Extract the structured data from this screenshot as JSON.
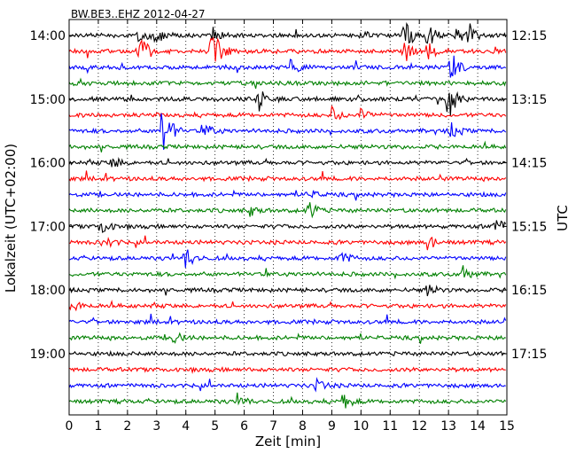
{
  "chart_data": {
    "type": "line",
    "title": "BW.BE3..EHZ 2012-04-27",
    "xlabel": "Zeit  [min]",
    "ylabel": "Lokalzeit (UTC+02:00)",
    "ylabel_right": "UTC",
    "xlim": [
      0,
      15
    ],
    "x_ticks": [
      "0",
      "1",
      "2",
      "3",
      "4",
      "5",
      "6",
      "7",
      "8",
      "9",
      "10",
      "11",
      "12",
      "13",
      "14",
      "15"
    ],
    "grid": "vertical dotted",
    "trace_count": 24,
    "trace_interval_min": 15,
    "color_cycle": [
      "#000000",
      "#ff0000",
      "#0000ff",
      "#008000"
    ],
    "left_ticks": [
      {
        "label": "14:00",
        "trace": 0
      },
      {
        "label": "15:00",
        "trace": 4
      },
      {
        "label": "16:00",
        "trace": 8
      },
      {
        "label": "17:00",
        "trace": 12
      },
      {
        "label": "18:00",
        "trace": 16
      },
      {
        "label": "19:00",
        "trace": 20
      }
    ],
    "right_ticks": [
      {
        "label": "12:15",
        "trace": 0
      },
      {
        "label": "13:15",
        "trace": 4
      },
      {
        "label": "14:15",
        "trace": 8
      },
      {
        "label": "15:15",
        "trace": 12
      },
      {
        "label": "16:15",
        "trace": 16
      },
      {
        "label": "17:15",
        "trace": 20
      }
    ],
    "events": [
      {
        "trace": 0,
        "t": 2.4,
        "amp": 0.6
      },
      {
        "trace": 0,
        "t": 3.0,
        "amp": 0.5
      },
      {
        "trace": 0,
        "t": 4.9,
        "amp": 0.5
      },
      {
        "trace": 0,
        "t": 10.0,
        "amp": 0.35
      },
      {
        "trace": 0,
        "t": 11.5,
        "amp": 1.0
      },
      {
        "trace": 0,
        "t": 12.3,
        "amp": 0.8
      },
      {
        "trace": 0,
        "t": 13.3,
        "amp": 0.6
      },
      {
        "trace": 0,
        "t": 13.7,
        "amp": 0.5
      },
      {
        "trace": 1,
        "t": 2.4,
        "amp": 1.4
      },
      {
        "trace": 1,
        "t": 4.9,
        "amp": 2.0
      },
      {
        "trace": 1,
        "t": 11.5,
        "amp": 0.7
      },
      {
        "trace": 1,
        "t": 12.3,
        "amp": 0.5
      },
      {
        "trace": 2,
        "t": 7.6,
        "amp": 0.5
      },
      {
        "trace": 2,
        "t": 13.1,
        "amp": 0.9
      },
      {
        "trace": 4,
        "t": 6.5,
        "amp": 0.8
      },
      {
        "trace": 4,
        "t": 13.0,
        "amp": 1.4
      },
      {
        "trace": 5,
        "t": 9.0,
        "amp": 0.5
      },
      {
        "trace": 5,
        "t": 10.0,
        "amp": 0.4
      },
      {
        "trace": 6,
        "t": 3.2,
        "amp": 1.9
      },
      {
        "trace": 6,
        "t": 4.7,
        "amp": 0.4
      },
      {
        "trace": 6,
        "t": 13.1,
        "amp": 0.5
      },
      {
        "trace": 8,
        "t": 1.5,
        "amp": 0.4
      },
      {
        "trace": 10,
        "t": 8.2,
        "amp": 0.3
      },
      {
        "trace": 11,
        "t": 8.2,
        "amp": 0.6
      },
      {
        "trace": 11,
        "t": 6.2,
        "amp": 0.3
      },
      {
        "trace": 12,
        "t": 1.1,
        "amp": 0.5
      },
      {
        "trace": 12,
        "t": 14.6,
        "amp": 0.6
      },
      {
        "trace": 13,
        "t": 1.2,
        "amp": 0.5
      },
      {
        "trace": 13,
        "t": 12.3,
        "amp": 0.5
      },
      {
        "trace": 14,
        "t": 4.0,
        "amp": 0.8
      },
      {
        "trace": 14,
        "t": 9.3,
        "amp": 0.5
      },
      {
        "trace": 15,
        "t": 13.5,
        "amp": 0.5
      },
      {
        "trace": 16,
        "t": 12.3,
        "amp": 0.4
      },
      {
        "trace": 17,
        "t": 0.1,
        "amp": 0.4
      },
      {
        "trace": 19,
        "t": 3.6,
        "amp": 0.4
      },
      {
        "trace": 22,
        "t": 8.5,
        "amp": 0.4
      },
      {
        "trace": 23,
        "t": 5.8,
        "amp": 0.4
      },
      {
        "trace": 23,
        "t": 9.4,
        "amp": 0.5
      }
    ]
  }
}
